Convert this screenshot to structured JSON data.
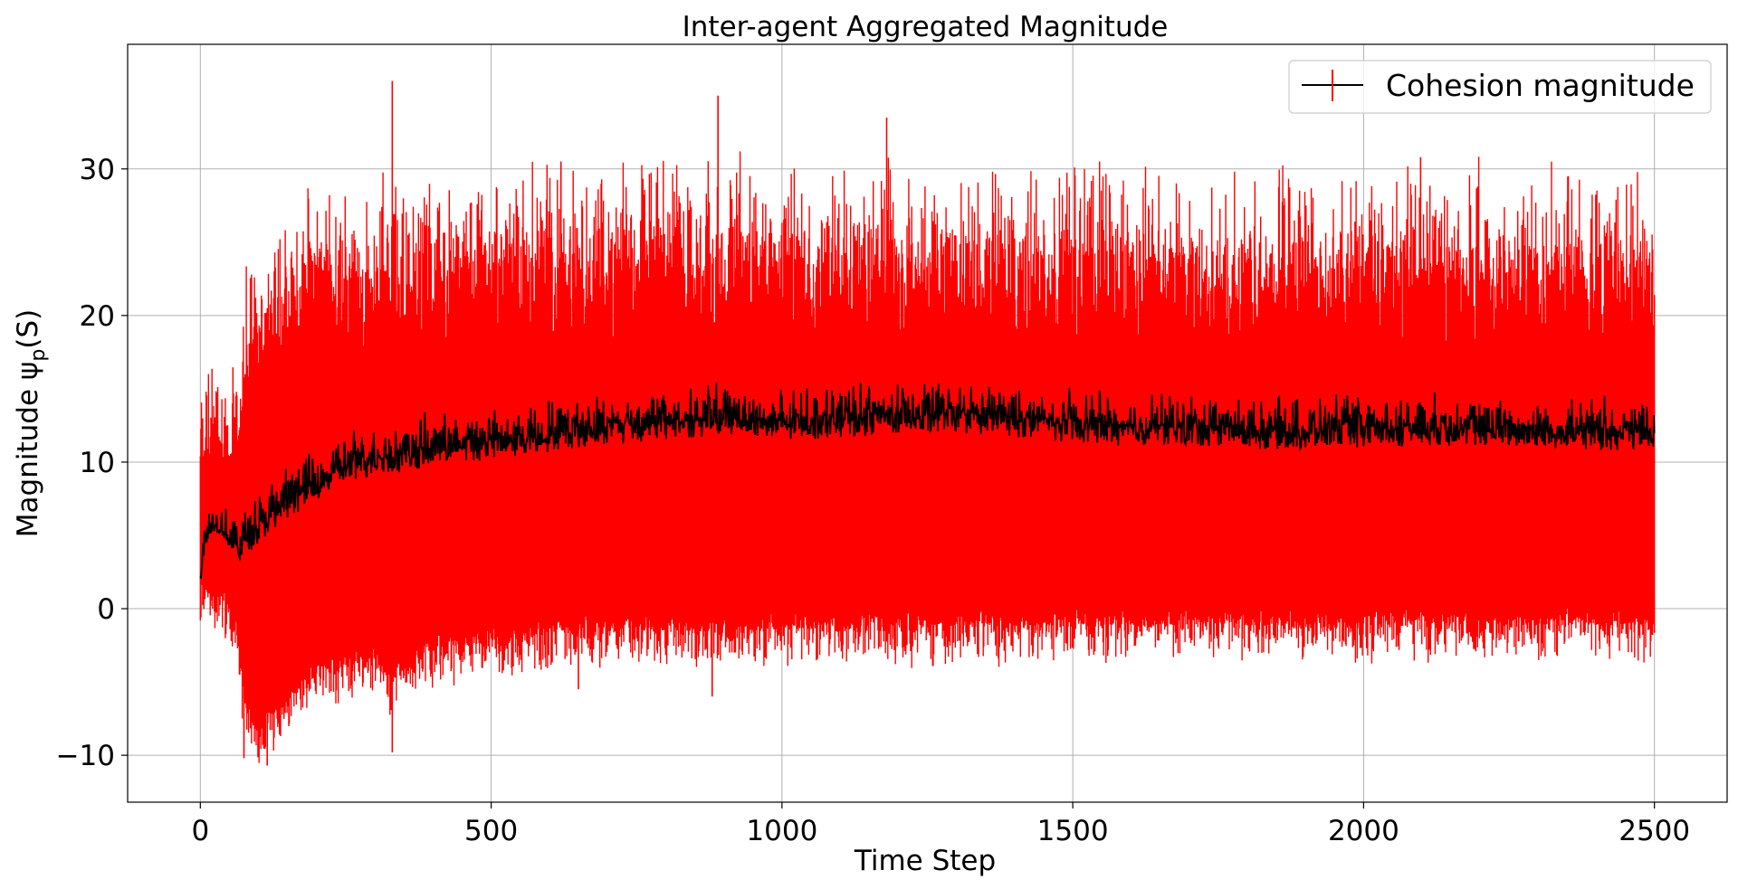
{
  "chart_data": {
    "type": "line",
    "title": "Inter-agent Aggregated Magnitude",
    "xlabel": "Time Step",
    "ylabel": "Magnitude ψ",
    "ylabel_subscript": "p",
    "ylabel_tail": "(S)",
    "xlim": [
      -125,
      2625
    ],
    "ylim": [
      -13.2,
      38.5
    ],
    "x_ticks": [
      0,
      500,
      1000,
      1500,
      2000,
      2500
    ],
    "y_ticks": [
      -10,
      0,
      10,
      20,
      30
    ],
    "x_tick_labels": [
      "0",
      "500",
      "1000",
      "1500",
      "2000",
      "2500"
    ],
    "y_tick_labels": [
      "−10",
      "0",
      "10",
      "20",
      "30"
    ],
    "grid": true,
    "legend": {
      "position": "top-right",
      "entries": [
        "Cohesion magnitude"
      ]
    },
    "series": [
      {
        "name": "Cohesion magnitude",
        "kind": "errorbar",
        "line_color": "#000000",
        "error_color": "#ff0000",
        "mean_profile_x": [
          0,
          10,
          20,
          40,
          60,
          80,
          100,
          150,
          200,
          250,
          300,
          350,
          400,
          500,
          600,
          700,
          800,
          900,
          1000,
          1100,
          1200,
          1300,
          1400,
          1500,
          1600,
          1700,
          1800,
          1900,
          2000,
          2100,
          2200,
          2300,
          2400,
          2500
        ],
        "mean_profile_y": [
          2.2,
          5.0,
          5.7,
          5.3,
          4.1,
          4.6,
          5.6,
          7.3,
          8.4,
          9.6,
          10.2,
          10.4,
          10.8,
          11.2,
          11.8,
          12.3,
          12.6,
          12.9,
          12.5,
          12.8,
          13.0,
          13.1,
          12.8,
          12.4,
          12.2,
          12.2,
          12.0,
          11.9,
          12.1,
          12.2,
          12.1,
          12.0,
          11.9,
          11.9
        ],
        "upper_profile_x": [
          0,
          10,
          30,
          60,
          80,
          100,
          150,
          200,
          300,
          330,
          400,
          500,
          700,
          900,
          1200,
          1500,
          2000,
          2500
        ],
        "upper_profile_y": [
          9.2,
          10.0,
          10.5,
          8.7,
          18.0,
          20.5,
          22.5,
          24.5,
          23.5,
          26.0,
          25.0,
          25.3,
          25.3,
          26.0,
          25.3,
          24.8,
          24.7,
          24.6
        ],
        "lower_profile_x": [
          0,
          10,
          30,
          60,
          80,
          100,
          150,
          200,
          300,
          330,
          400,
          500,
          700,
          900,
          1200,
          1500,
          2000,
          2500
        ],
        "lower_profile_y": [
          1.2,
          0.4,
          1.0,
          -0.8,
          -7.5,
          -8.5,
          -6.5,
          -4.5,
          -3.5,
          -5.0,
          -2.8,
          -2.3,
          -1.5,
          -1.5,
          -1.3,
          -1.2,
          -1.1,
          -1.1
        ],
        "spikes": [
          {
            "x": 330,
            "y": 36.0
          },
          {
            "x": 890,
            "y": 35.0
          },
          {
            "x": 1180,
            "y": 33.5
          },
          {
            "x": 2098,
            "y": 30.8
          },
          {
            "x": 620,
            "y": 30.5
          },
          {
            "x": 880,
            "y": -6.0
          },
          {
            "x": 115,
            "y": -10.7
          },
          {
            "x": 75,
            "y": -10.2
          },
          {
            "x": 330,
            "y": -9.8
          },
          {
            "x": 650,
            "y": -5.5
          }
        ]
      }
    ]
  }
}
